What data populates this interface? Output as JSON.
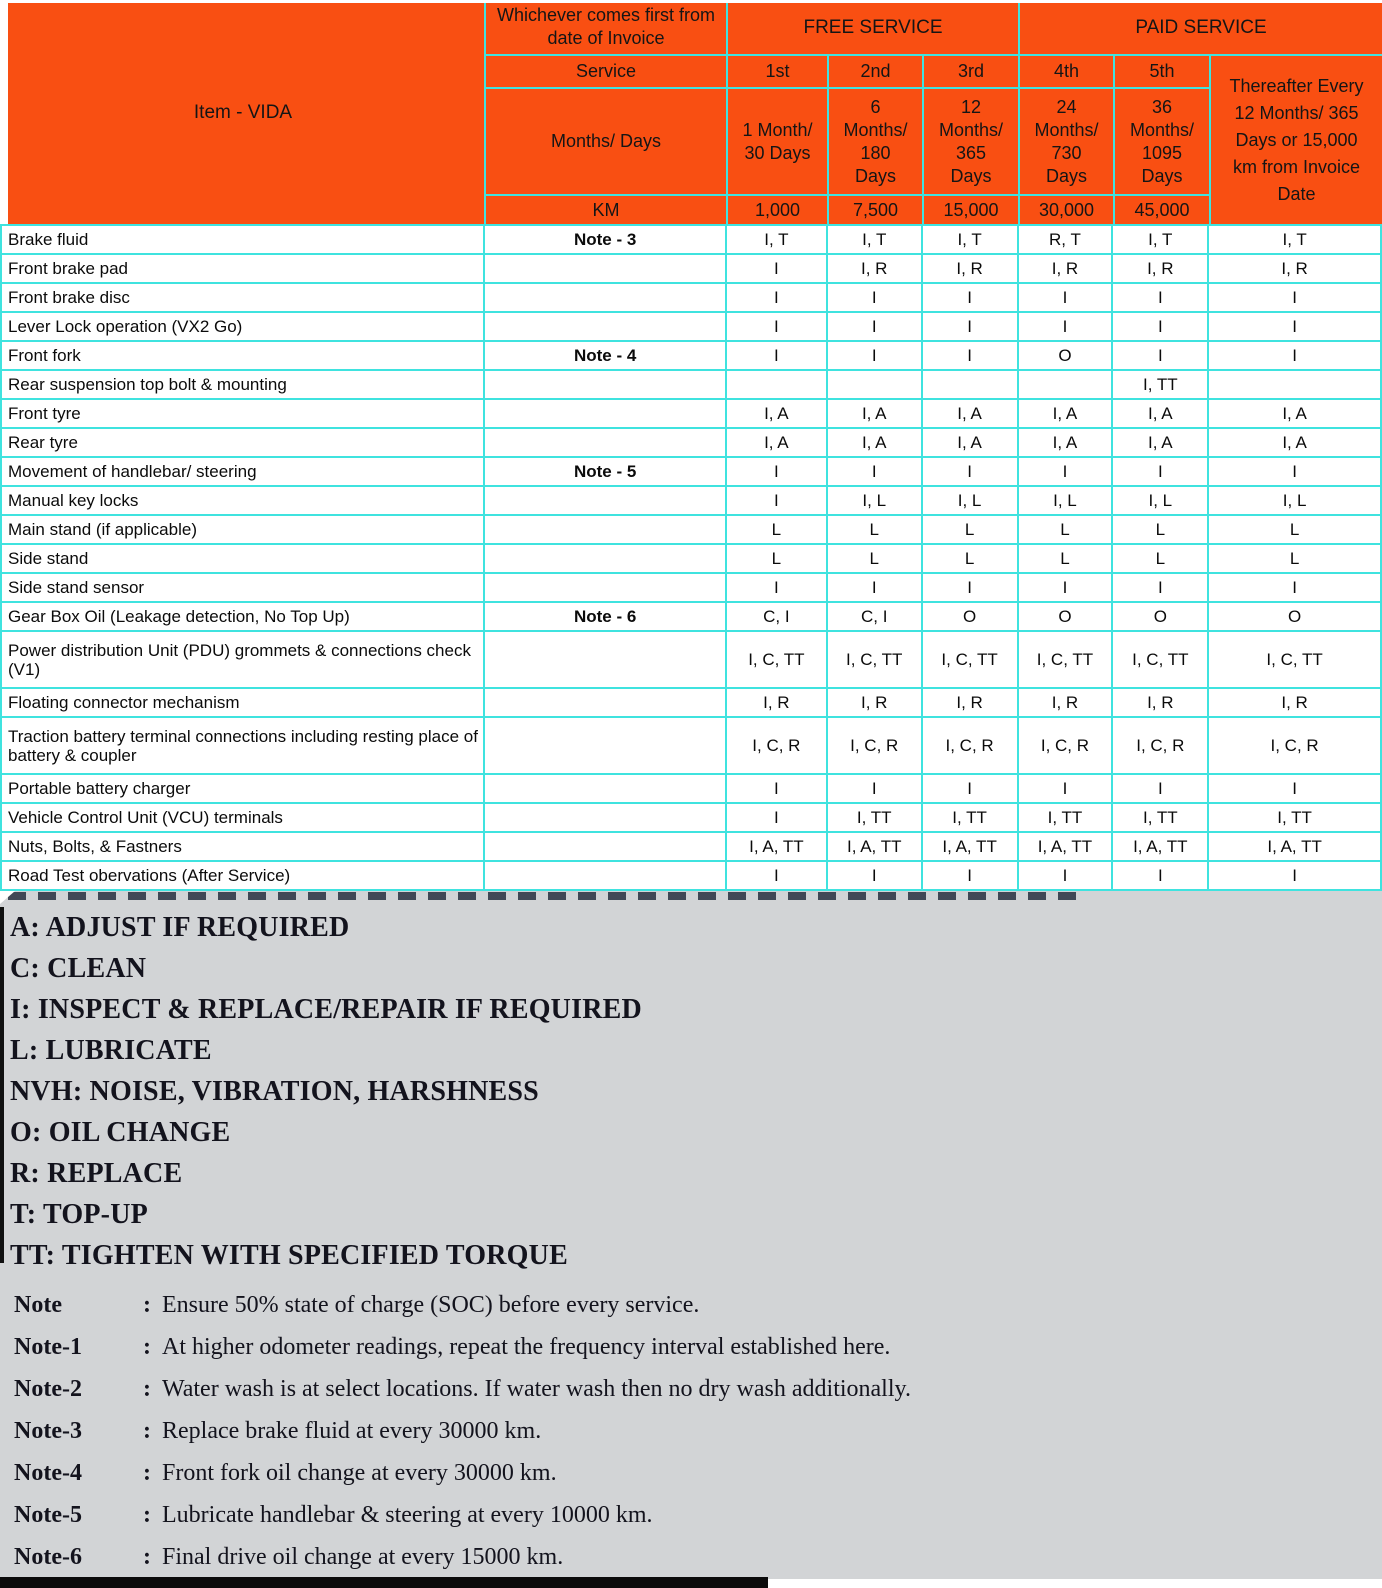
{
  "colors": {
    "header_orange": "#F94F12",
    "grid_cyan": "#3FE3DF",
    "panel_gray": "#D2D4D6",
    "text_black": "#0b0b0b",
    "legend_ink": "#13131d"
  },
  "table": {
    "item_header": "Item - VIDA",
    "invoice_header": "Whichever comes first from date of Invoice",
    "free_service": "FREE SERVICE",
    "paid_service": "PAID SERVICE",
    "row_labels": {
      "service": "Service",
      "months_days": "Months/ Days",
      "km": "KM"
    },
    "services": [
      {
        "ordinal": "1st",
        "interval": "1 Month/\n30 Days",
        "km": "1,000"
      },
      {
        "ordinal": "2nd",
        "interval": "6\nMonths/\n180\nDays",
        "km": "7,500"
      },
      {
        "ordinal": "3rd",
        "interval": "12\nMonths/\n365\nDays",
        "km": "15,000"
      },
      {
        "ordinal": "4th",
        "interval": "24\nMonths/\n730\nDays",
        "km": "30,000"
      },
      {
        "ordinal": "5th",
        "interval": "36\nMonths/\n1095\nDays",
        "km": "45,000"
      }
    ],
    "thereafter": "Thereafter Every\n12 Months/ 365\nDays  or 15,000\nkm from Invoice\nDate",
    "rows": [
      {
        "item": "Brake fluid",
        "note": "Note - 3",
        "tall": false,
        "values": [
          "I, T",
          "I, T",
          "I, T",
          "R, T",
          "I, T",
          "I, T"
        ]
      },
      {
        "item": "Front brake pad",
        "note": "",
        "tall": false,
        "values": [
          "I",
          "I, R",
          "I, R",
          "I, R",
          "I, R",
          "I, R"
        ]
      },
      {
        "item": "Front brake disc",
        "note": "",
        "tall": false,
        "values": [
          "I",
          "I",
          "I",
          "I",
          "I",
          "I"
        ]
      },
      {
        "item": "Lever Lock operation (VX2 Go)",
        "note": "",
        "tall": false,
        "values": [
          "I",
          "I",
          "I",
          "I",
          "I",
          "I"
        ]
      },
      {
        "item": "Front fork",
        "note": "Note - 4",
        "tall": false,
        "values": [
          "I",
          "I",
          "I",
          "O",
          "I",
          "I"
        ]
      },
      {
        "item": "Rear suspension top bolt & mounting",
        "note": "",
        "tall": false,
        "values": [
          "",
          "",
          "",
          "",
          "I, TT",
          ""
        ]
      },
      {
        "item": "Front tyre",
        "note": "",
        "tall": false,
        "values": [
          "I, A",
          "I, A",
          "I, A",
          "I, A",
          "I, A",
          "I, A"
        ]
      },
      {
        "item": "Rear tyre",
        "note": "",
        "tall": false,
        "values": [
          "I, A",
          "I, A",
          "I, A",
          "I, A",
          "I, A",
          "I, A"
        ]
      },
      {
        "item": "Movement of handlebar/ steering",
        "note": "Note - 5",
        "tall": false,
        "values": [
          "I",
          "I",
          "I",
          "I",
          "I",
          "I"
        ]
      },
      {
        "item": "Manual key locks",
        "note": "",
        "tall": false,
        "values": [
          "I",
          "I, L",
          "I, L",
          "I, L",
          "I, L",
          "I, L"
        ]
      },
      {
        "item": "Main stand (if applicable)",
        "note": "",
        "tall": false,
        "values": [
          "L",
          "L",
          "L",
          "L",
          "L",
          "L"
        ]
      },
      {
        "item": "Side stand",
        "note": "",
        "tall": false,
        "values": [
          "L",
          "L",
          "L",
          "L",
          "L",
          "L"
        ]
      },
      {
        "item": "Side stand sensor",
        "note": "",
        "tall": false,
        "values": [
          "I",
          "I",
          "I",
          "I",
          "I",
          "I"
        ]
      },
      {
        "item": "Gear Box Oil (Leakage detection, No Top Up)",
        "note": "Note - 6",
        "tall": false,
        "values": [
          "C, I",
          "C, I",
          "O",
          "O",
          "O",
          "O"
        ]
      },
      {
        "item": "Power distribution Unit (PDU) grommets & connections check (V1)",
        "note": "",
        "tall": true,
        "values": [
          "I, C, TT",
          "I, C, TT",
          "I, C, TT",
          "I, C, TT",
          "I, C, TT",
          "I, C, TT"
        ]
      },
      {
        "item": "Floating connector mechanism",
        "note": "",
        "tall": false,
        "values": [
          "I, R",
          "I, R",
          "I, R",
          "I, R",
          "I, R",
          "I, R"
        ]
      },
      {
        "item": "Traction battery terminal connections including resting place of battery & coupler",
        "note": "",
        "tall": true,
        "values": [
          "I, C, R",
          "I, C, R",
          "I, C, R",
          "I, C, R",
          "I, C, R",
          "I, C, R"
        ]
      },
      {
        "item": "Portable battery charger",
        "note": "",
        "tall": false,
        "values": [
          "I",
          "I",
          "I",
          "I",
          "I",
          "I"
        ]
      },
      {
        "item": "Vehicle Control Unit (VCU) terminals",
        "note": "",
        "tall": false,
        "values": [
          "I",
          "I, TT",
          "I, TT",
          "I, TT",
          "I, TT",
          "I, TT"
        ]
      },
      {
        "item": "Nuts, Bolts, & Fastners",
        "note": "",
        "tall": false,
        "values": [
          "I, A, TT",
          "I, A, TT",
          "I, A, TT",
          "I, A, TT",
          "I, A, TT",
          "I, A, TT"
        ]
      },
      {
        "item": "Road Test obervations (After Service)",
        "note": "",
        "tall": false,
        "values": [
          "I",
          "I",
          "I",
          "I",
          "I",
          "I"
        ]
      }
    ]
  },
  "legend": [
    "A: ADJUST IF REQUIRED",
    "C: CLEAN",
    "I: INSPECT & REPLACE/REPAIR IF REQUIRED",
    "L: LUBRICATE",
    "NVH: NOISE, VIBRATION, HARSHNESS",
    "O: OIL CHANGE",
    "R: REPLACE",
    "T: TOP-UP",
    "TT: TIGHTEN WITH SPECIFIED TORQUE"
  ],
  "notes": [
    {
      "label": "Note",
      "text": "Ensure 50% state of charge (SOC) before every service."
    },
    {
      "label": "Note-1",
      "text": "At higher odometer readings, repeat  the frequency interval established here."
    },
    {
      "label": "Note-2",
      "text": "Water wash is at select locations. If water wash then no dry wash additionally."
    },
    {
      "label": "Note-3",
      "text": "Replace brake fluid at every 30000 km."
    },
    {
      "label": "Note-4",
      "text": "Front fork oil change at every 30000 km."
    },
    {
      "label": "Note-5",
      "text": "Lubricate handlebar & steering at every 10000 km."
    },
    {
      "label": "Note-6",
      "text": "Final drive oil change at every 15000 km."
    }
  ]
}
